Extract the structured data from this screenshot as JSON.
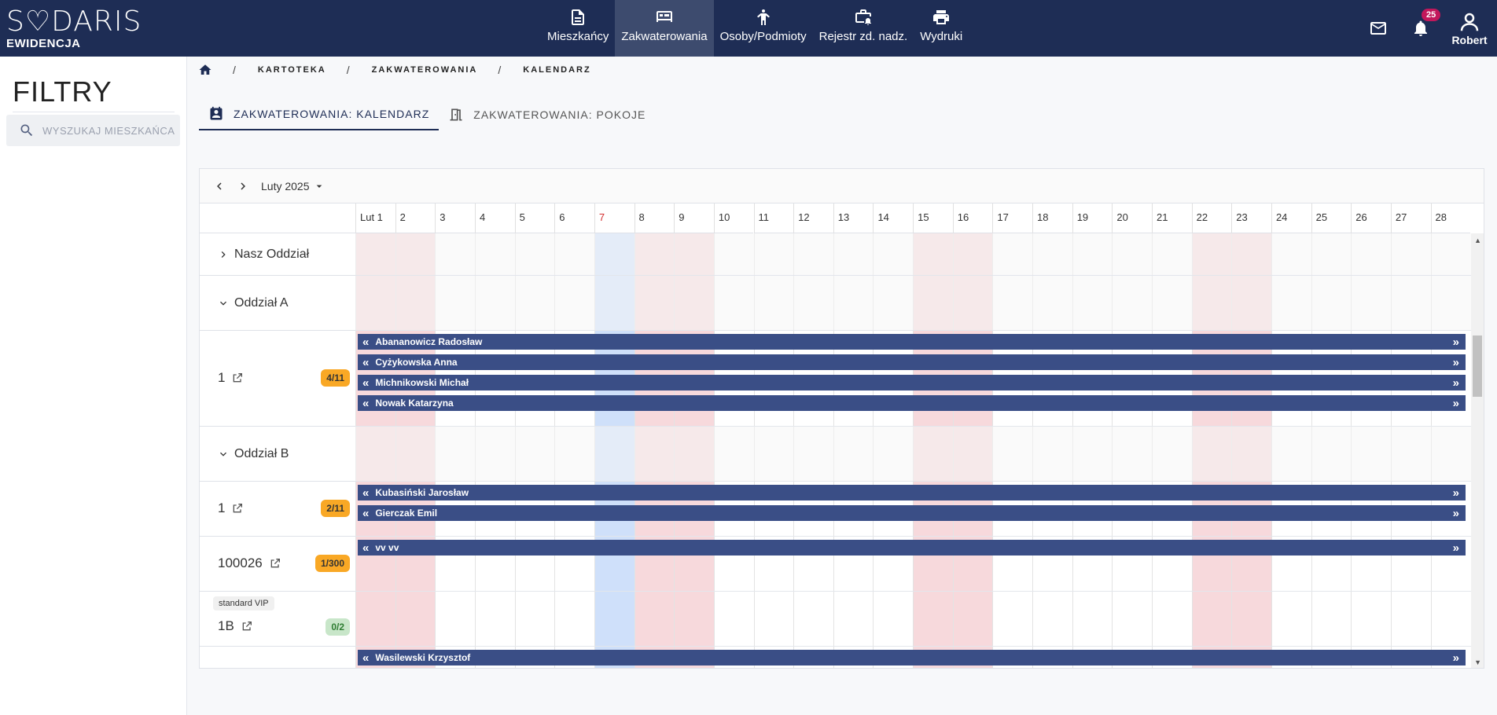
{
  "app": {
    "logo": "S♡DARIS",
    "subtitle": "EWIDENCJA"
  },
  "nav": [
    {
      "label": "Mieszkańcy",
      "icon": "document-icon",
      "active": false
    },
    {
      "label": "Zakwaterowania",
      "icon": "bed-icon",
      "active": true
    },
    {
      "label": "Osoby/Podmioty",
      "icon": "person-icon",
      "active": false
    },
    {
      "label": "Rejestr zd. nadz.",
      "icon": "briefcase-alarm-icon",
      "active": false
    },
    {
      "label": "Wydruki",
      "icon": "printer-icon",
      "active": false
    }
  ],
  "header": {
    "notifications_count": "25",
    "user_name": "Robert"
  },
  "sidebar": {
    "title": "FILTRY",
    "search_placeholder": "WYSZUKAJ MIESZKAŃCA"
  },
  "breadcrumb": [
    "KARTOTEKA",
    "ZAKWATEROWANIA",
    "KALENDARZ"
  ],
  "tabs": [
    {
      "label": "ZAKWATEROWANIA: KALENDARZ",
      "active": true
    },
    {
      "label": "ZAKWATEROWANIA: POKOJE",
      "active": false
    }
  ],
  "calendar": {
    "month_label": "Luty 2025",
    "days": [
      "Lut 1",
      "2",
      "3",
      "4",
      "5",
      "6",
      "7",
      "8",
      "9",
      "10",
      "11",
      "12",
      "13",
      "14",
      "15",
      "16",
      "17",
      "18",
      "19",
      "20",
      "21",
      "22",
      "23",
      "24",
      "25",
      "26",
      "27",
      "28"
    ],
    "today_index": 6,
    "weekend_indices": [
      0,
      1,
      7,
      8,
      14,
      15,
      21,
      22
    ],
    "rows": [
      {
        "type": "group",
        "label": "Nasz Oddział",
        "expanded": false
      },
      {
        "type": "group",
        "label": "Oddział A",
        "expanded": true
      },
      {
        "type": "room",
        "label": "1",
        "occupancy": "4/11",
        "occ_color": "orange",
        "bookings": [
          "Abananowicz Radosław",
          "Cyżykowska Anna",
          "Michnikowski Michał",
          "Nowak Katarzyna"
        ]
      },
      {
        "type": "group",
        "label": "Oddział B",
        "expanded": true
      },
      {
        "type": "room",
        "label": "1",
        "occupancy": "2/11",
        "occ_color": "orange",
        "bookings": [
          "Kubasiński Jarosław",
          "Gierczak Emil"
        ]
      },
      {
        "type": "room",
        "label": "100026",
        "occupancy": "1/300",
        "occ_color": "orange",
        "bookings": [
          "vv vv"
        ]
      },
      {
        "type": "room",
        "label": "1B",
        "occupancy": "0/2",
        "occ_color": "green",
        "tag": "standard VIP",
        "bookings": []
      },
      {
        "type": "room",
        "label": "",
        "occupancy": "",
        "bookings": [
          "Wasilewski Krzysztof"
        ]
      }
    ]
  }
}
